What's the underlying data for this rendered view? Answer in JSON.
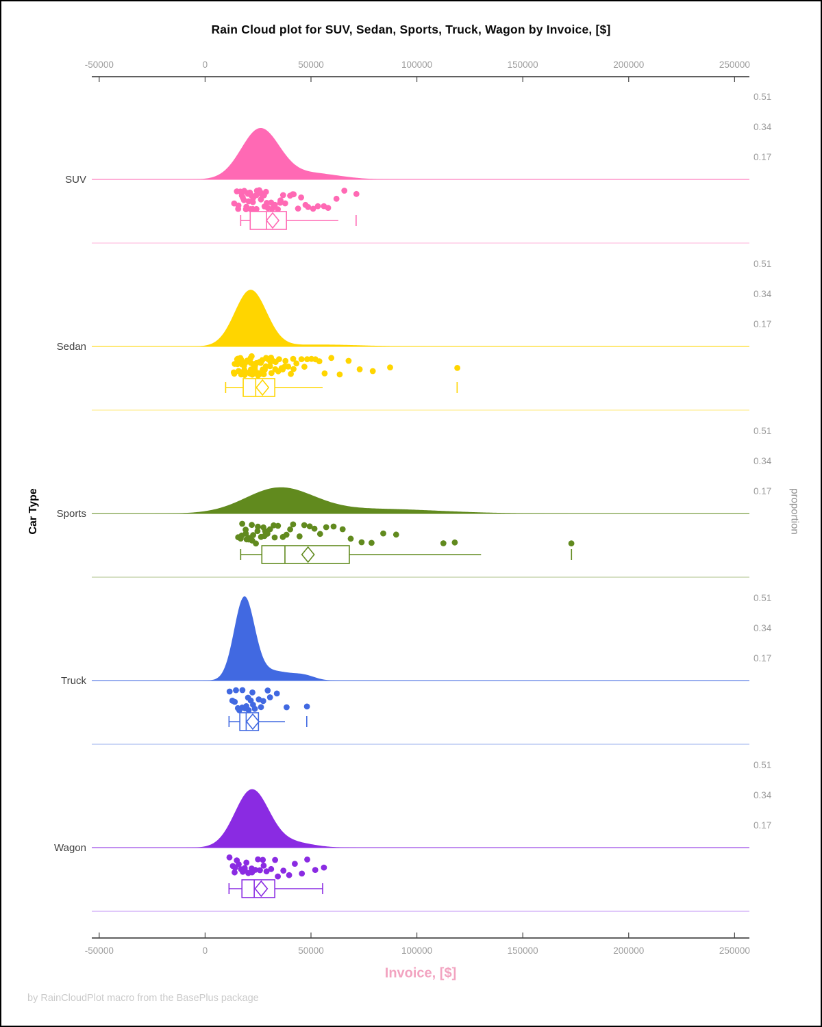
{
  "chart_data": {
    "type": "raincloud",
    "title": "Rain Cloud plot for SUV, Sedan, Sports, Truck, Wagon by Invoice, [$]",
    "xlabel": "Invoice, [$]",
    "ylabel": "Car Type",
    "right_axis_label": "proportion",
    "footnote": "by RainCloudPlot macro from the BasePlus package",
    "x_axis": {
      "ticks": [
        -50000,
        0,
        50000,
        100000,
        150000,
        200000,
        250000
      ],
      "tick_labels": [
        "-50000",
        "0",
        "50000",
        "100000",
        "150000",
        "200000",
        "250000"
      ],
      "range": [
        -53500,
        257000
      ]
    },
    "proportion_ticks": [
      0.51,
      0.34,
      0.17
    ],
    "categories": [
      {
        "label": "SUV",
        "color": "#FF69B4",
        "tint": "#FFCBE5",
        "density": {
          "peak": 0.29,
          "components": [
            {
              "mu": 26000,
              "sigma": 9000,
              "w": 1.0
            },
            {
              "mu": 50000,
              "sigma": 13000,
              "w": 0.18
            }
          ]
        },
        "box": {
          "whisker_low": 16800,
          "q1": 21300,
          "median": 29000,
          "q3": 38400,
          "whisker_high": 62900,
          "mean": 31900,
          "outliers": [
            71300
          ]
        },
        "points": [
          14300,
          15100,
          15600,
          16200,
          16800,
          17300,
          17700,
          18100,
          18500,
          18900,
          19300,
          19700,
          20100,
          20500,
          21000,
          21400,
          21900,
          22300,
          22800,
          23200,
          23700,
          24200,
          24700,
          25200,
          25800,
          26300,
          26900,
          27500,
          28100,
          28800,
          29400,
          30100,
          30900,
          31600,
          32400,
          33300,
          34200,
          35100,
          36100,
          37200,
          38300,
          39500,
          40800,
          42200,
          43700,
          45300,
          47100,
          49000,
          51100,
          53400,
          55900,
          58700,
          61800,
          65200,
          70900
        ]
      },
      {
        "label": "Sedan",
        "color": "#FFD500",
        "tint": "#FFF0A6",
        "density": {
          "peak": 0.32,
          "components": [
            {
              "mu": 21500,
              "sigma": 7500,
              "w": 1.0
            },
            {
              "mu": 55000,
              "sigma": 18000,
              "w": 0.08
            }
          ]
        },
        "box": {
          "whisker_low": 9700,
          "q1": 18000,
          "median": 23900,
          "q3": 32900,
          "whisker_high": 55500,
          "mean": 27100,
          "outliers": [
            119000
          ]
        },
        "points": [
          13200,
          13700,
          14100,
          14500,
          14800,
          15200,
          15500,
          15800,
          16100,
          16400,
          16700,
          17000,
          17300,
          17600,
          17900,
          18200,
          18500,
          18800,
          19100,
          19400,
          19600,
          19900,
          20200,
          20500,
          20800,
          21100,
          21400,
          21700,
          22000,
          22300,
          22600,
          22900,
          23200,
          23500,
          23800,
          24100,
          24400,
          24800,
          25100,
          25500,
          25800,
          26200,
          26600,
          27000,
          27400,
          27800,
          28200,
          28700,
          29100,
          29600,
          30100,
          30600,
          31100,
          31700,
          32300,
          32900,
          33500,
          34200,
          34900,
          35600,
          36400,
          37200,
          38100,
          39000,
          40000,
          41100,
          42300,
          43600,
          45000,
          46500,
          48100,
          49900,
          51800,
          53900,
          56200,
          60000,
          63800,
          67900,
          72600,
          79800,
          87200,
          119500
        ]
      },
      {
        "label": "Sports",
        "color": "#618A1E",
        "tint": "#C8D6B0",
        "density": {
          "peak": 0.148,
          "components": [
            {
              "mu": 35000,
              "sigma": 16000,
              "w": 1.0
            },
            {
              "mu": 80000,
              "sigma": 30000,
              "w": 0.35
            }
          ]
        },
        "box": {
          "whisker_low": 16800,
          "q1": 26800,
          "median": 37700,
          "q3": 68100,
          "whisker_high": 130300,
          "mean": 48600,
          "outliers": [
            173000
          ]
        },
        "points": [
          15800,
          16300,
          16900,
          17800,
          18600,
          19000,
          19400,
          20200,
          21000,
          21800,
          22600,
          23000,
          23500,
          24400,
          25300,
          26300,
          27300,
          28000,
          28400,
          29500,
          30700,
          32000,
          33400,
          34900,
          36500,
          38200,
          40000,
          42000,
          44100,
          46400,
          48900,
          51600,
          54500,
          57700,
          61200,
          65000,
          69200,
          73800,
          78900,
          84500,
          90700,
          112600,
          117800,
          172900
        ]
      },
      {
        "label": "Truck",
        "color": "#4169E1",
        "tint": "#BCCAF4",
        "density": {
          "peak": 0.475,
          "components": [
            {
              "mu": 18500,
              "sigma": 4800,
              "w": 1.0
            },
            {
              "mu": 32000,
              "sigma": 9000,
              "w": 0.22
            },
            {
              "mu": 47000,
              "sigma": 5000,
              "w": 0.05
            }
          ]
        },
        "box": {
          "whisker_low": 11300,
          "q1": 16400,
          "median": 19400,
          "q3": 25200,
          "whisker_high": 37700,
          "mean": 22500,
          "outliers": [
            48000
          ]
        },
        "points": [
          12100,
          13200,
          14100,
          14900,
          15600,
          16300,
          17000,
          17700,
          18400,
          19100,
          19800,
          20500,
          21300,
          22100,
          23000,
          24000,
          25100,
          26300,
          27700,
          29300,
          31200,
          33500,
          38700,
          47700
        ]
      },
      {
        "label": "Wagon",
        "color": "#8A2BE2",
        "tint": "#D6B5F8",
        "density": {
          "peak": 0.33,
          "components": [
            {
              "mu": 22000,
              "sigma": 8000,
              "w": 1.0
            },
            {
              "mu": 40000,
              "sigma": 10000,
              "w": 0.12
            }
          ]
        },
        "box": {
          "whisker_low": 11300,
          "q1": 17400,
          "median": 23200,
          "q3": 32900,
          "whisker_high": 55500,
          "mean": 26500,
          "outliers": []
        },
        "points": [
          12000,
          13100,
          14000,
          14800,
          15600,
          16300,
          17000,
          17800,
          18500,
          19300,
          20100,
          20900,
          21800,
          22700,
          23600,
          24600,
          25700,
          26900,
          28200,
          29600,
          31100,
          32800,
          34700,
          36800,
          39200,
          42000,
          45200,
          48000,
          52000,
          56100
        ]
      }
    ]
  }
}
